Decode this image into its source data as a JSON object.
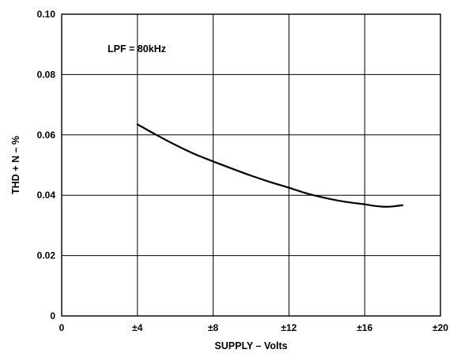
{
  "chart_data": {
    "type": "line",
    "xlabel": "SUPPLY – Volts",
    "ylabel": "THD + N – %",
    "xlim": [
      0,
      20
    ],
    "ylim": [
      0,
      0.1
    ],
    "x_ticks": [
      {
        "value": 0,
        "label": "0"
      },
      {
        "value": 4,
        "label": "±4"
      },
      {
        "value": 8,
        "label": "±8"
      },
      {
        "value": 12,
        "label": "±12"
      },
      {
        "value": 16,
        "label": "±16"
      },
      {
        "value": 20,
        "label": "±20"
      }
    ],
    "y_ticks": [
      {
        "value": 0,
        "label": "0"
      },
      {
        "value": 0.02,
        "label": "0.02"
      },
      {
        "value": 0.04,
        "label": "0.04"
      },
      {
        "value": 0.06,
        "label": "0.06"
      },
      {
        "value": 0.08,
        "label": "0.08"
      },
      {
        "value": 0.1,
        "label": "0.10"
      }
    ],
    "grid": true,
    "annotation": "LPF = 80kHz",
    "series": [
      {
        "color": "#000000",
        "x": [
          4,
          5,
          6,
          7,
          8,
          9,
          10,
          11,
          12,
          13,
          14,
          15,
          16,
          16.5,
          17,
          17.5,
          18
        ],
        "values": [
          0.0635,
          0.06,
          0.0567,
          0.0537,
          0.0512,
          0.0488,
          0.0465,
          0.0444,
          0.0425,
          0.0405,
          0.039,
          0.0378,
          0.037,
          0.0365,
          0.0362,
          0.0363,
          0.0367
        ]
      }
    ]
  }
}
